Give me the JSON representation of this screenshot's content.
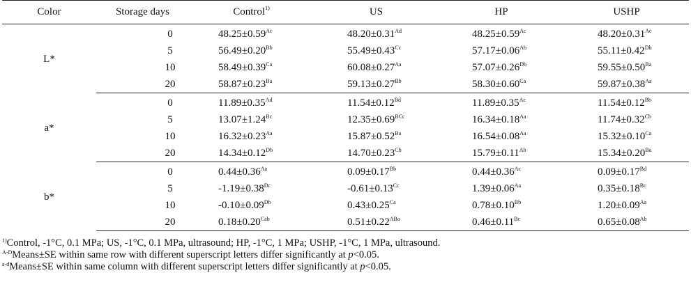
{
  "table": {
    "headers": {
      "color": "Color",
      "days": "Storage days",
      "control": "Control",
      "control_sup": "1)",
      "us": "US",
      "hp": "HP",
      "ushp": "USHP"
    },
    "groups": [
      {
        "label": "L*",
        "rows": [
          {
            "day": "0",
            "cells": [
              {
                "v": "48.25±0.59",
                "s": "Ac"
              },
              {
                "v": "48.20±0.31",
                "s": "Ad"
              },
              {
                "v": "48.25±0.59",
                "s": "Ac"
              },
              {
                "v": "48.20±0.31",
                "s": "Ac"
              }
            ]
          },
          {
            "day": "5",
            "cells": [
              {
                "v": "56.49±0.20",
                "s": "Bb"
              },
              {
                "v": "55.49±0.43",
                "s": "Cc"
              },
              {
                "v": "57.17±0.06",
                "s": "Ab"
              },
              {
                "v": "55.11±0.42",
                "s": "Db"
              }
            ]
          },
          {
            "day": "10",
            "cells": [
              {
                "v": "58.49±0.39",
                "s": "Ca"
              },
              {
                "v": "60.08±0.27",
                "s": "Aa"
              },
              {
                "v": "57.07±0.26",
                "s": "Db"
              },
              {
                "v": "59.55±0.50",
                "s": "Ba"
              }
            ]
          },
          {
            "day": "20",
            "cells": [
              {
                "v": "58.87±0.23",
                "s": "Ba"
              },
              {
                "v": "59.13±0.27",
                "s": "Bb"
              },
              {
                "v": "58.30±0.60",
                "s": "Ca"
              },
              {
                "v": "59.87±0.38",
                "s": "Aa"
              }
            ]
          }
        ]
      },
      {
        "label": "a*",
        "rows": [
          {
            "day": "0",
            "cells": [
              {
                "v": "11.89±0.35",
                "s": "Ad"
              },
              {
                "v": "11.54±0.12",
                "s": "Bd"
              },
              {
                "v": "11.89±0.35",
                "s": "Ac"
              },
              {
                "v": "11.54±0.12",
                "s": "Bb"
              }
            ]
          },
          {
            "day": "5",
            "cells": [
              {
                "v": "13.07±1.24",
                "s": "Bc"
              },
              {
                "v": "12.35±0.69",
                "s": "BCc"
              },
              {
                "v": "16.34±0.18",
                "s": "Aa"
              },
              {
                "v": "11.74±0.32",
                "s": "Cb"
              }
            ]
          },
          {
            "day": "10",
            "cells": [
              {
                "v": "16.32±0.23",
                "s": "Aa"
              },
              {
                "v": "15.87±0.52",
                "s": "Ba"
              },
              {
                "v": "16.54±0.08",
                "s": "Aa"
              },
              {
                "v": "15.32±0.10",
                "s": "Ca"
              }
            ]
          },
          {
            "day": "20",
            "cells": [
              {
                "v": "14.34±0.12",
                "s": "Db"
              },
              {
                "v": "14.70±0.23",
                "s": "Cb"
              },
              {
                "v": "15.79±0.11",
                "s": "Ab"
              },
              {
                "v": "15.34±0.20",
                "s": "Ba"
              }
            ]
          }
        ]
      },
      {
        "label": "b*",
        "rows": [
          {
            "day": "0",
            "cells": [
              {
                "v": "0.44±0.36",
                "s": "Aa"
              },
              {
                "v": "0.09±0.17",
                "s": "Bb"
              },
              {
                "v": "0.44±0.36",
                "s": "Ac"
              },
              {
                "v": "0.09±0.17",
                "s": "Bd"
              }
            ]
          },
          {
            "day": "5",
            "cells": [
              {
                "v": "-1.19±0.38",
                "s": "Dc"
              },
              {
                "v": "-0.61±0.13",
                "s": "Cc"
              },
              {
                "v": "1.39±0.06",
                "s": "Aa"
              },
              {
                "v": "0.35±0.18",
                "s": "Bc"
              }
            ]
          },
          {
            "day": "10",
            "cells": [
              {
                "v": "-0.10±0.09",
                "s": "Db"
              },
              {
                "v": "0.43±0.25",
                "s": "Ca"
              },
              {
                "v": "0.78±0.10",
                "s": "Bb"
              },
              {
                "v": "1.20±0.09",
                "s": "Aa"
              }
            ]
          },
          {
            "day": "20",
            "cells": [
              {
                "v": "0.18±0.20",
                "s": "Cab"
              },
              {
                "v": "0.51±0.22",
                "s": "ABa"
              },
              {
                "v": "0.46±0.11",
                "s": "Bc"
              },
              {
                "v": "0.65±0.08",
                "s": "Ab"
              }
            ]
          }
        ]
      }
    ]
  },
  "footnotes": [
    {
      "sup": "1)",
      "text": "Control, -1°C, 0.1 MPa;  US, -1°C, 0.1 MPa, ultrasound; HP, -1°C, 1 MPa; USHP, -1°C, 1 MPa, ultrasound."
    },
    {
      "sup": "A-D",
      "text": "Means±SE within same row with different superscript letters differ significantly at ",
      "p": "p",
      "tail": "<0.05."
    },
    {
      "sup": "a-d",
      "text": "Means±SE within same column with different superscript letters differ significantly at ",
      "p": "p",
      "tail": "<0.05."
    }
  ]
}
